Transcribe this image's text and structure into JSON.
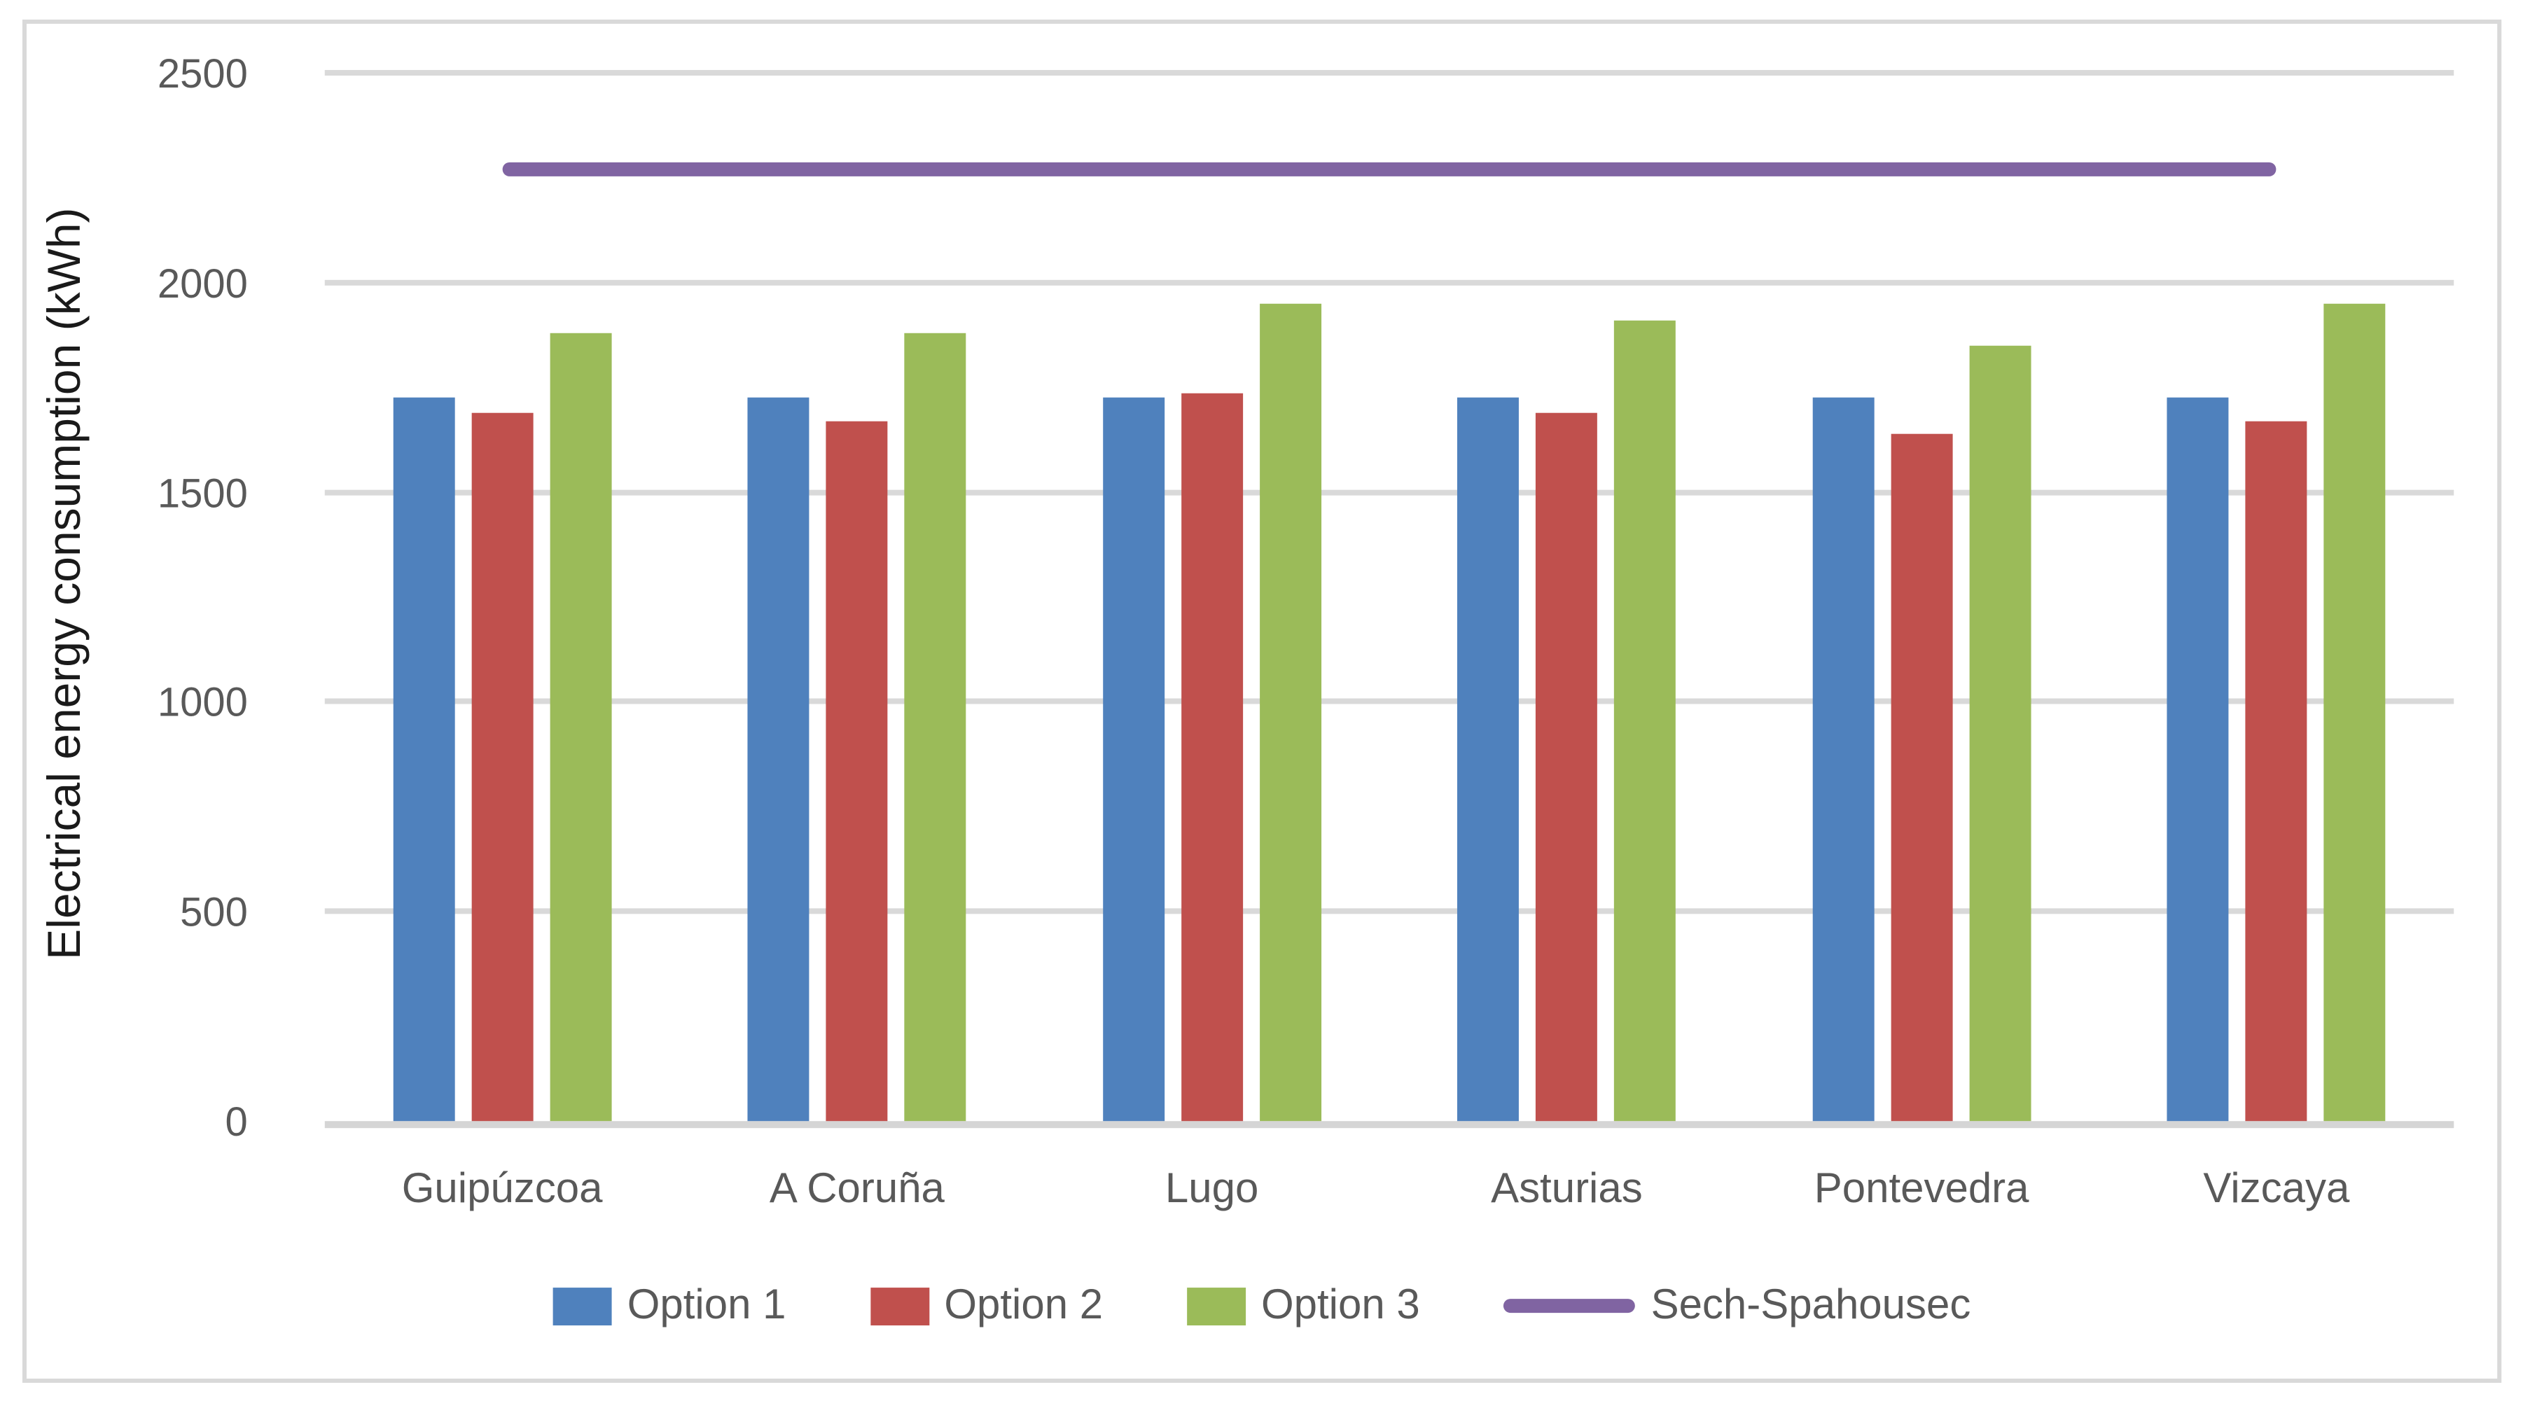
{
  "chart_data": {
    "type": "bar",
    "title": "",
    "categories": [
      "Guipúzcoa",
      "A Coruña",
      "Lugo",
      "Asturias",
      "Pontevedra",
      "Vizcaya"
    ],
    "series": [
      {
        "name": "Option 1",
        "type": "bar",
        "color": "#4F81BD",
        "values": [
          1725,
          1725,
          1725,
          1725,
          1725,
          1725
        ]
      },
      {
        "name": "Option 2",
        "type": "bar",
        "color": "#C0504D",
        "values": [
          1690,
          1670,
          1735,
          1690,
          1640,
          1670
        ]
      },
      {
        "name": "Option 3",
        "type": "bar",
        "color": "#9BBB59",
        "values": [
          1880,
          1880,
          1950,
          1910,
          1850,
          1950
        ]
      },
      {
        "name": "Sech-Spahousec",
        "type": "line",
        "color": "#8064A2",
        "values": [
          2270,
          2270,
          2270,
          2270,
          2270,
          2270
        ]
      }
    ],
    "xlabel": "",
    "ylabel": "Electrical energy consumption (kWh)",
    "ylim": [
      0,
      2500
    ],
    "ytick_step": 500,
    "ytick_labels": [
      "0",
      "500",
      "1000",
      "1500",
      "2000",
      "2500"
    ],
    "grid": true,
    "legend_position": "bottom",
    "colors": {
      "gridline": "#D9D9D9",
      "axis_line": "#D5D5D5",
      "tick_text": "#595959",
      "category_text": "#595959",
      "legend_text": "#595959",
      "axis_title_text": "#1A1A1A",
      "frame_border": "#D9D9D9",
      "background": "#FFFFFF"
    }
  }
}
